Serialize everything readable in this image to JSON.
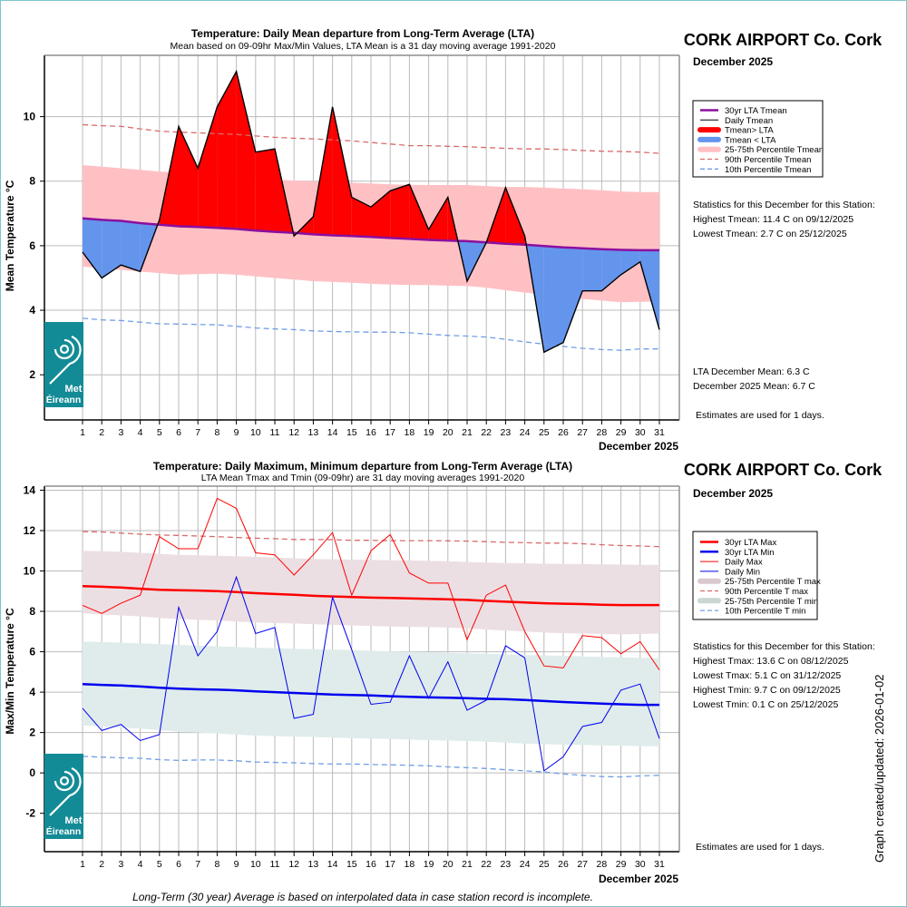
{
  "station": "CORK AIRPORT Co. Cork",
  "month_label": "December 2025",
  "x_axis_label": "December 2025",
  "footer_note": "Long-Term (30 year) Average is based on interpolated data in case station record is incomplete.",
  "created_label": "Graph created/updated:  2026-01-02",
  "logo_text": [
    "Met",
    "Éireann"
  ],
  "colors": {
    "lta_tmean": "#8b0f9e",
    "above": "#ff0000",
    "below": "#6495ed",
    "band_tmean": "#ffc0c4",
    "p90": "#d96a6a",
    "p10": "#6f9ee8",
    "lta_max": "#ff0000",
    "lta_min": "#0000ee",
    "band_tmax": "#ecdfe3",
    "band_tmin": "#dfeceb",
    "logo": "#138b96",
    "grid": "#bbbbbb"
  },
  "top": {
    "stats_header": "Statistics for this December for this Station:",
    "stats": [
      "Highest Tmean: 11.4 C on 09/12/2025",
      "Lowest Tmean: 2.7 C on 25/12/2025"
    ],
    "lta_month_mean": "LTA December Mean: 6.3 C",
    "month_mean": "December 2025 Mean: 6.7 C",
    "estimates": "Estimates are used for 1 days.",
    "legend": [
      {
        "label": "30yr LTA Tmean",
        "style": "lta"
      },
      {
        "label": "Daily Tmean",
        "style": "daily"
      },
      {
        "label": "Tmean> LTA",
        "style": "above"
      },
      {
        "label": "Tmean < LTA",
        "style": "below"
      },
      {
        "label": "25-75th Percentile Tmean",
        "style": "band"
      },
      {
        "label": "90th Percentile Tmean",
        "style": "p90"
      },
      {
        "label": "10th Percentile Tmean",
        "style": "p10"
      }
    ]
  },
  "bottom": {
    "stats_header": "Statistics for this December for this Station:",
    "stats": [
      "Highest Tmax: 13.6 C on 08/12/2025",
      "Lowest Tmax: 5.1 C on 31/12/2025",
      "Highest Tmin: 9.7 C on 09/12/2025",
      "Lowest Tmin: 0.1 C on 25/12/2025"
    ],
    "estimates": "Estimates are used for 1 days.",
    "legend": [
      {
        "label": "30yr LTA Max",
        "style": "ltamax"
      },
      {
        "label": "30yr LTA Min",
        "style": "ltamin"
      },
      {
        "label": "Daily Max",
        "style": "dmax"
      },
      {
        "label": "Daily Min",
        "style": "dmin"
      },
      {
        "label": "25-75th Percentile T max",
        "style": "bandmax"
      },
      {
        "label": "90th Percentile T max",
        "style": "p90"
      },
      {
        "label": "25-75th Percentile T min",
        "style": "bandmin"
      },
      {
        "label": "10th Percentile T min",
        "style": "p10"
      }
    ]
  },
  "chart_data": [
    {
      "type": "area",
      "title": "Temperature: Daily Mean departure from Long-Term Average (LTA)",
      "subtitle": "Mean based on 09-09hr Max/Min Values, LTA Mean is a 31 day moving average 1991-2020",
      "xlabel": "December 2025",
      "ylabel": "Mean Temperature °C",
      "ylim": [
        0.6,
        11.9
      ],
      "yticks": [
        2,
        4,
        6,
        8,
        10
      ],
      "x": [
        1,
        2,
        3,
        4,
        5,
        6,
        7,
        8,
        9,
        10,
        11,
        12,
        13,
        14,
        15,
        16,
        17,
        18,
        19,
        20,
        21,
        22,
        23,
        24,
        25,
        26,
        27,
        28,
        29,
        30,
        31
      ],
      "grid": true,
      "legend_position": "right",
      "series": [
        {
          "name": "Daily Tmean",
          "values": [
            5.8,
            5.0,
            5.4,
            5.2,
            6.8,
            9.7,
            8.4,
            10.3,
            11.4,
            8.9,
            9.0,
            6.3,
            6.9,
            10.3,
            7.5,
            7.2,
            7.7,
            7.9,
            6.5,
            7.5,
            4.9,
            6.1,
            7.8,
            6.3,
            2.7,
            3.0,
            4.6,
            4.6,
            5.1,
            5.5,
            3.4
          ]
        },
        {
          "name": "30yr LTA Tmean",
          "values": [
            6.85,
            6.8,
            6.77,
            6.7,
            6.65,
            6.6,
            6.58,
            6.55,
            6.52,
            6.47,
            6.43,
            6.4,
            6.35,
            6.32,
            6.3,
            6.27,
            6.24,
            6.21,
            6.18,
            6.16,
            6.14,
            6.1,
            6.06,
            6.03,
            5.99,
            5.95,
            5.92,
            5.89,
            5.87,
            5.86,
            5.86
          ]
        },
        {
          "name": "90th Percentile Tmean",
          "values": [
            9.75,
            9.72,
            9.7,
            9.62,
            9.55,
            9.52,
            9.5,
            9.47,
            9.45,
            9.4,
            9.36,
            9.33,
            9.31,
            9.28,
            9.25,
            9.2,
            9.15,
            9.1,
            9.1,
            9.08,
            9.07,
            9.04,
            9.02,
            9.0,
            9.0,
            8.98,
            8.95,
            8.93,
            8.92,
            8.9,
            8.86
          ]
        },
        {
          "name": "10th Percentile Tmean",
          "values": [
            3.75,
            3.7,
            3.68,
            3.63,
            3.58,
            3.57,
            3.56,
            3.55,
            3.5,
            3.45,
            3.42,
            3.4,
            3.36,
            3.34,
            3.33,
            3.32,
            3.32,
            3.3,
            3.26,
            3.22,
            3.2,
            3.17,
            3.1,
            3.02,
            2.95,
            2.88,
            2.82,
            2.78,
            2.76,
            2.8,
            2.8
          ]
        },
        {
          "name": "25th Percentile Tmean",
          "values": [
            5.35,
            5.3,
            5.25,
            5.2,
            5.15,
            5.1,
            5.12,
            5.13,
            5.1,
            5.05,
            5.0,
            4.95,
            4.9,
            4.88,
            4.85,
            4.82,
            4.8,
            4.78,
            4.78,
            4.76,
            4.75,
            4.7,
            4.62,
            4.55,
            4.48,
            4.42,
            4.35,
            4.3,
            4.25,
            4.26,
            4.27
          ]
        },
        {
          "name": "75th Percentile Tmean",
          "values": [
            8.5,
            8.45,
            8.4,
            8.35,
            8.3,
            8.27,
            8.23,
            8.2,
            8.15,
            8.1,
            8.05,
            8.02,
            8.0,
            7.98,
            7.95,
            7.93,
            7.9,
            7.89,
            7.88,
            7.88,
            7.88,
            7.85,
            7.82,
            7.82,
            7.8,
            7.77,
            7.75,
            7.72,
            7.68,
            7.66,
            7.66
          ]
        }
      ]
    },
    {
      "type": "line",
      "title": "Temperature: Daily Maximum, Minimum departure from Long-Term Average (LTA)",
      "subtitle": "LTA Mean Tmax and Tmin (09-09hr) are 31 day moving averages 1991-2020",
      "xlabel": "December 2025",
      "ylabel": "Max/Min Temperature °C",
      "ylim": [
        -3.9,
        14.2
      ],
      "yticks": [
        -2,
        0,
        2,
        4,
        6,
        8,
        10,
        12,
        14
      ],
      "x": [
        1,
        2,
        3,
        4,
        5,
        6,
        7,
        8,
        9,
        10,
        11,
        12,
        13,
        14,
        15,
        16,
        17,
        18,
        19,
        20,
        21,
        22,
        23,
        24,
        25,
        26,
        27,
        28,
        29,
        30,
        31
      ],
      "grid": true,
      "legend_position": "right",
      "series": [
        {
          "name": "Daily Max",
          "values": [
            8.3,
            7.9,
            8.4,
            8.8,
            11.7,
            11.1,
            11.1,
            13.6,
            13.1,
            10.9,
            10.8,
            9.8,
            10.8,
            11.9,
            8.8,
            11.0,
            11.8,
            9.9,
            9.4,
            9.4,
            6.6,
            8.8,
            9.3,
            7.0,
            5.3,
            5.2,
            6.8,
            6.7,
            5.9,
            6.5,
            5.1
          ]
        },
        {
          "name": "Daily Min",
          "values": [
            3.2,
            2.1,
            2.4,
            1.6,
            1.9,
            8.2,
            5.8,
            7.0,
            9.7,
            6.9,
            7.2,
            2.7,
            2.9,
            8.7,
            6.1,
            3.4,
            3.5,
            5.8,
            3.7,
            5.5,
            3.1,
            3.6,
            6.3,
            5.7,
            0.1,
            0.8,
            2.3,
            2.5,
            4.1,
            4.4,
            1.7
          ]
        },
        {
          "name": "30yr LTA Max",
          "values": [
            9.25,
            9.22,
            9.18,
            9.12,
            9.07,
            9.05,
            9.03,
            9.0,
            8.96,
            8.9,
            8.86,
            8.82,
            8.77,
            8.74,
            8.71,
            8.68,
            8.66,
            8.64,
            8.62,
            8.6,
            8.57,
            8.52,
            8.48,
            8.44,
            8.4,
            8.38,
            8.36,
            8.33,
            8.31,
            8.31,
            8.31
          ]
        },
        {
          "name": "30yr LTA Min",
          "values": [
            4.4,
            4.36,
            4.33,
            4.28,
            4.22,
            4.17,
            4.14,
            4.12,
            4.09,
            4.04,
            4.0,
            3.96,
            3.92,
            3.88,
            3.86,
            3.84,
            3.8,
            3.77,
            3.74,
            3.72,
            3.7,
            3.67,
            3.65,
            3.61,
            3.56,
            3.51,
            3.47,
            3.43,
            3.4,
            3.37,
            3.37
          ]
        },
        {
          "name": "90th Percentile T max",
          "values": [
            11.95,
            11.93,
            11.88,
            11.82,
            11.78,
            11.76,
            11.73,
            11.7,
            11.66,
            11.62,
            11.6,
            11.56,
            11.56,
            11.55,
            11.52,
            11.52,
            11.5,
            11.5,
            11.5,
            11.49,
            11.48,
            11.45,
            11.42,
            11.4,
            11.38,
            11.38,
            11.35,
            11.3,
            11.26,
            11.24,
            11.2
          ]
        },
        {
          "name": "10th Percentile T min",
          "values": [
            0.82,
            0.78,
            0.75,
            0.72,
            0.66,
            0.62,
            0.64,
            0.64,
            0.6,
            0.54,
            0.52,
            0.5,
            0.46,
            0.44,
            0.44,
            0.42,
            0.4,
            0.38,
            0.35,
            0.3,
            0.26,
            0.22,
            0.16,
            0.1,
            0.05,
            -0.05,
            -0.12,
            -0.18,
            -0.2,
            -0.15,
            -0.12
          ]
        },
        {
          "name": "25th Percentile T max",
          "values": [
            7.9,
            7.85,
            7.8,
            7.75,
            7.68,
            7.62,
            7.58,
            7.55,
            7.5,
            7.45,
            7.42,
            7.4,
            7.36,
            7.33,
            7.3,
            7.28,
            7.25,
            7.23,
            7.22,
            7.2,
            7.16,
            7.1,
            7.05,
            7.0,
            6.95,
            6.92,
            6.9,
            6.88,
            6.86,
            6.88,
            6.9
          ]
        },
        {
          "name": "75th Percentile T max",
          "values": [
            11.0,
            10.98,
            10.95,
            10.9,
            10.85,
            10.8,
            10.78,
            10.76,
            10.73,
            10.7,
            10.67,
            10.63,
            10.6,
            10.58,
            10.56,
            10.55,
            10.53,
            10.52,
            10.5,
            10.48,
            10.45,
            10.42,
            10.4,
            10.38,
            10.36,
            10.35,
            10.35,
            10.33,
            10.32,
            10.3,
            10.3
          ]
        },
        {
          "name": "25th Percentile T min",
          "values": [
            2.35,
            2.3,
            2.25,
            2.2,
            2.12,
            2.05,
            2.0,
            1.95,
            1.9,
            1.85,
            1.82,
            1.8,
            1.78,
            1.75,
            1.72,
            1.7,
            1.68,
            1.65,
            1.62,
            1.6,
            1.58,
            1.55,
            1.5,
            1.45,
            1.42,
            1.4,
            1.38,
            1.36,
            1.35,
            1.33,
            1.32
          ]
        },
        {
          "name": "75th Percentile T min",
          "values": [
            6.5,
            6.48,
            6.45,
            6.42,
            6.38,
            6.34,
            6.3,
            6.27,
            6.24,
            6.2,
            6.18,
            6.15,
            6.12,
            6.1,
            6.08,
            6.05,
            6.02,
            6.0,
            5.98,
            5.95,
            5.92,
            5.9,
            5.87,
            5.84,
            5.82,
            5.8,
            5.77,
            5.74,
            5.72,
            5.7,
            5.69
          ]
        }
      ]
    }
  ]
}
